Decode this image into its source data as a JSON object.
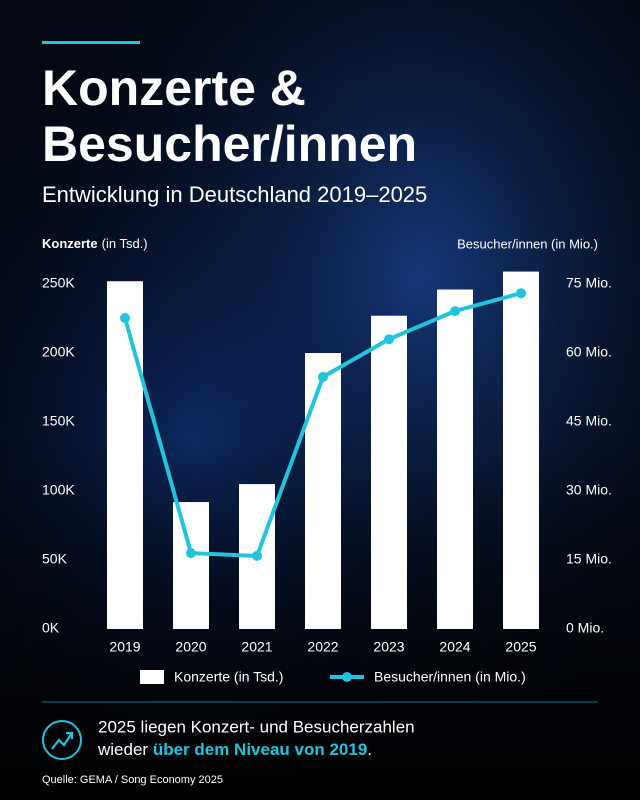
{
  "chart_data": {
    "type": "bar_line",
    "title_lines": [
      "Konzerte &",
      "Besucher/innen"
    ],
    "subtitle": "Entwicklung in Deutschland 2019–2025",
    "y_label_bold": "Konzerte",
    "y_label_unit": "(in Tsd.)",
    "y2_label": "Besucher/innen (in Mio.)",
    "categories": [
      "2019",
      "2020",
      "2021",
      "2022",
      "2023",
      "2024",
      "2025"
    ],
    "series": [
      {
        "name": "Konzerte (in Tsd.)",
        "color": "#ffffff",
        "values": [
          252000,
          92000,
          105000,
          200000,
          227000,
          246000,
          259000
        ]
      },
      {
        "name": "Besucher/innen (in Mio.)",
        "color": "#22c3dd",
        "axis": "y2",
        "values": [
          67.6,
          16.5,
          15.9,
          54.8,
          63,
          69.1,
          73
        ]
      }
    ],
    "ylim": [
      0,
      250000
    ],
    "yticks": [
      {
        "value": 0,
        "label": "0K"
      },
      {
        "value": 50000,
        "label": "50K"
      },
      {
        "value": 100000,
        "label": "100K"
      },
      {
        "value": 150000,
        "label": "150K"
      },
      {
        "value": 200000,
        "label": "200K"
      },
      {
        "value": 250000,
        "label": "250K"
      }
    ],
    "y2lim": [
      0,
      75
    ],
    "y2ticks": [
      {
        "value": 0,
        "label": "0 Mio."
      },
      {
        "value": 15,
        "label": "15 Mio."
      },
      {
        "value": 30,
        "label": "30 Mio."
      },
      {
        "value": 45,
        "label": "45 Mio."
      },
      {
        "value": 60,
        "label": "60 Mio."
      },
      {
        "value": 75,
        "label": "75 Mio."
      }
    ],
    "grid": false,
    "note": {
      "line1": "2025 liegen Konzert- und Besucherzahlen",
      "line2_start": "wieder ",
      "line2_highlight": "über dem Niveau von 2019",
      "line2_end": "."
    },
    "source": "Quelle: GEMA / Song Economy 2025"
  }
}
